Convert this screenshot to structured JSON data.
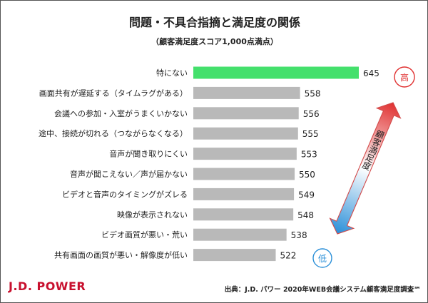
{
  "title": "問題・不具合指摘と満足度の関係",
  "subtitle": "（顧客満足度スコア1,000点満点）",
  "brand": "J.D. POWER",
  "source": "出典：J.D. パワー 2020年WEB会議システム顧客満足度調査℠",
  "colors": {
    "highlight": "#44e06c",
    "bar": "#b9b9b9",
    "high": "#e03030",
    "low": "#2a8fd8"
  },
  "side_scale": {
    "high_label": "高",
    "low_label": "低",
    "axis_label": "顧客満足度"
  },
  "chart_data": {
    "type": "bar",
    "orientation": "horizontal",
    "categories": [
      "特にない",
      "画面共有が遅延する（タイムラグがある）",
      "会議への参加・入室がうまくいかない",
      "途中、接続が切れる（つながらなくなる）",
      "音声が聞き取りにくい",
      "音声が聞こえない／声が届かない",
      "ビデオと音声のタイミングがズレる",
      "映像が表示されない",
      "ビデオ画質が悪い・荒い",
      "共有画面の画質が悪い・解像度が低い"
    ],
    "values": [
      645,
      558,
      556,
      555,
      553,
      550,
      549,
      548,
      538,
      522
    ],
    "highlight_index": 0,
    "xlim": [
      400,
      645
    ]
  }
}
